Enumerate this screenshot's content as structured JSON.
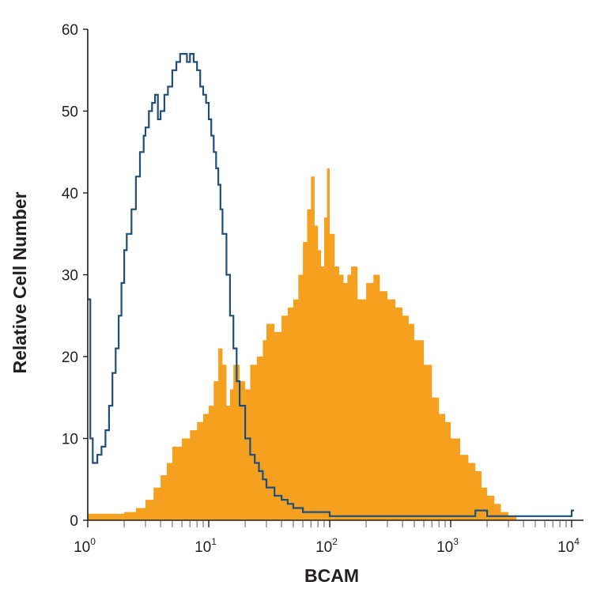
{
  "chart_data": {
    "type": "area",
    "xlabel": "BCAM",
    "ylabel": "Relative Cell Number",
    "xscale": "log",
    "xlim": [
      1,
      10000
    ],
    "ylim": [
      0,
      60
    ],
    "yticks": [
      0,
      10,
      20,
      30,
      40,
      50,
      60
    ],
    "xticks": [
      {
        "base": "10",
        "exp": "0",
        "value": 1
      },
      {
        "base": "10",
        "exp": "1",
        "value": 10
      },
      {
        "base": "10",
        "exp": "2",
        "value": 100
      },
      {
        "base": "10",
        "exp": "3",
        "value": 1000
      },
      {
        "base": "10",
        "exp": "4",
        "value": 10000
      }
    ],
    "grid": false,
    "series": [
      {
        "style": "filled",
        "color": "#f5a01f",
        "x": [
          1,
          1.5,
          2,
          2.5,
          3,
          3.5,
          4,
          4.5,
          5,
          6,
          7,
          8,
          9,
          10,
          11,
          12,
          13,
          14,
          15,
          16,
          18,
          20,
          22,
          25,
          28,
          30,
          35,
          40,
          45,
          50,
          55,
          60,
          65,
          70,
          75,
          80,
          85,
          90,
          95,
          100,
          110,
          120,
          130,
          140,
          150,
          170,
          200,
          230,
          260,
          300,
          350,
          400,
          450,
          500,
          600,
          700,
          800,
          900,
          1000,
          1200,
          1400,
          1600,
          1800,
          2000,
          2300,
          2600,
          3000,
          3500
        ],
        "y": [
          0.8,
          0.8,
          1,
          1.5,
          2.5,
          4,
          5.5,
          7,
          9,
          10,
          11,
          12,
          13,
          14,
          17,
          21,
          19,
          14,
          16,
          19,
          17,
          16,
          19,
          20,
          22,
          24,
          23,
          25,
          26,
          27,
          30,
          34,
          38,
          42,
          36,
          33,
          31,
          37,
          43,
          35,
          31,
          30,
          29,
          30,
          31,
          27,
          29,
          30,
          28,
          27,
          26,
          25,
          24,
          22,
          19,
          15,
          13,
          12,
          10,
          8,
          7,
          6,
          4,
          3,
          2,
          1,
          0.5,
          0
        ]
      },
      {
        "style": "outline",
        "color": "#1e4f7a",
        "x": [
          1,
          1.05,
          1.1,
          1.2,
          1.3,
          1.4,
          1.5,
          1.6,
          1.7,
          1.8,
          1.9,
          2,
          2.1,
          2.3,
          2.5,
          2.7,
          2.9,
          3,
          3.2,
          3.4,
          3.6,
          3.8,
          4,
          4.3,
          4.6,
          5,
          5.4,
          5.8,
          6.2,
          6.6,
          7,
          7.5,
          8,
          8.5,
          9,
          9.5,
          10,
          10.5,
          11,
          11.5,
          12,
          12.5,
          13,
          14,
          15,
          16,
          17,
          18,
          20,
          22,
          24,
          26,
          28,
          30,
          35,
          40,
          45,
          50,
          60,
          70,
          80,
          100,
          120,
          150,
          200,
          300,
          500,
          1000,
          1400,
          1600,
          2000,
          3000,
          5000,
          8000,
          10000
        ],
        "y": [
          27,
          10,
          7,
          8,
          9,
          11,
          14,
          18,
          21,
          25,
          29,
          33,
          35,
          38,
          42,
          45,
          47,
          48,
          50,
          51,
          52,
          49,
          50,
          52,
          53,
          55,
          56,
          57,
          57,
          56,
          57,
          56,
          55,
          53,
          52,
          51,
          49,
          47,
          45,
          43,
          41,
          38,
          35,
          30,
          25,
          21,
          17,
          14,
          10,
          8,
          7,
          6,
          5,
          4,
          3,
          2.5,
          2,
          1.5,
          1,
          1,
          1,
          0.5,
          0.5,
          0.5,
          0.5,
          0.5,
          0.5,
          0.5,
          0.5,
          1.2,
          0.5,
          0.5,
          0.5,
          0.5,
          1.2
        ]
      }
    ]
  }
}
